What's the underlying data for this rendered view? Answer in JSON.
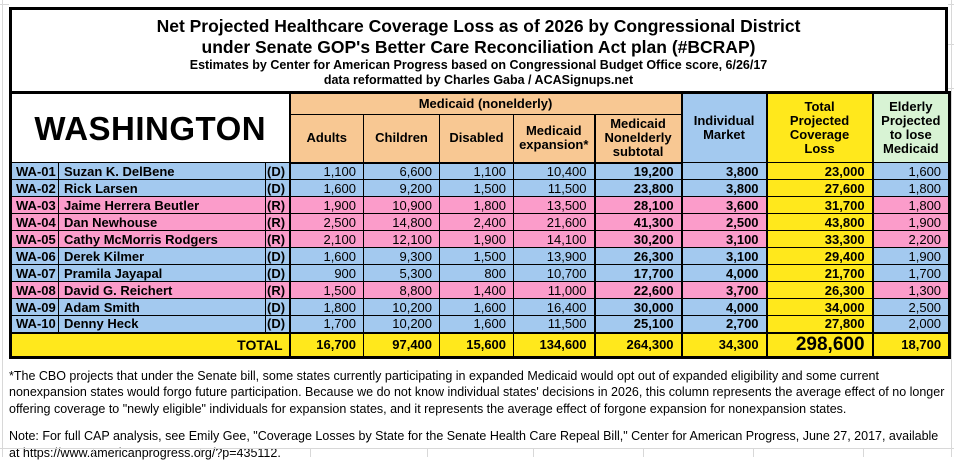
{
  "title": {
    "line1": "Net Projected Healthcare Coverage Loss as of 2026 by Congressional District",
    "line2": "under Senate GOP's Better Care Reconciliation Act plan (#BCRAP)",
    "line3": "Estimates by Center for American Progress based on Congressional Budget Office score, 6/26/17",
    "line4": "data reformatted by Charles Gaba / ACASignups.net"
  },
  "table": {
    "state_label": "WASHINGTON",
    "headers": {
      "medicaid_group": "Medicaid (nonelderly)",
      "adults": "Adults",
      "children": "Children",
      "disabled": "Disabled",
      "expansion": "Medicaid\nexpansion*",
      "subtotal": "Medicaid\nNonelderly\nsubtotal",
      "individual": "Individual\nMarket",
      "total": "Total\nProjected\nCoverage\nLoss",
      "elderly": "Elderly\nProjected\nto lose\nMedicaid"
    },
    "rows": [
      {
        "district": "WA-01",
        "name": "Suzan K. DelBene",
        "party": "(D)",
        "adults": "1,100",
        "children": "6,600",
        "disabled": "1,100",
        "expansion": "10,400",
        "subtotal": "19,200",
        "individual": "3,800",
        "total": "23,000",
        "elderly": "1,600"
      },
      {
        "district": "WA-02",
        "name": "Rick Larsen",
        "party": "(D)",
        "adults": "1,600",
        "children": "9,200",
        "disabled": "1,500",
        "expansion": "11,500",
        "subtotal": "23,800",
        "individual": "3,800",
        "total": "27,600",
        "elderly": "1,800"
      },
      {
        "district": "WA-03",
        "name": "Jaime Herrera Beutler",
        "party": "(R)",
        "adults": "1,900",
        "children": "10,900",
        "disabled": "1,800",
        "expansion": "13,500",
        "subtotal": "28,100",
        "individual": "3,600",
        "total": "31,700",
        "elderly": "1,800"
      },
      {
        "district": "WA-04",
        "name": "Dan Newhouse",
        "party": "(R)",
        "adults": "2,500",
        "children": "14,800",
        "disabled": "2,400",
        "expansion": "21,600",
        "subtotal": "41,300",
        "individual": "2,500",
        "total": "43,800",
        "elderly": "1,900"
      },
      {
        "district": "WA-05",
        "name": "Cathy McMorris Rodgers",
        "party": "(R)",
        "adults": "2,100",
        "children": "12,100",
        "disabled": "1,900",
        "expansion": "14,100",
        "subtotal": "30,200",
        "individual": "3,100",
        "total": "33,300",
        "elderly": "2,200"
      },
      {
        "district": "WA-06",
        "name": "Derek Kilmer",
        "party": "(D)",
        "adults": "1,600",
        "children": "9,300",
        "disabled": "1,500",
        "expansion": "13,900",
        "subtotal": "26,300",
        "individual": "3,100",
        "total": "29,400",
        "elderly": "1,900"
      },
      {
        "district": "WA-07",
        "name": "Pramila Jayapal",
        "party": "(D)",
        "adults": "900",
        "children": "5,300",
        "disabled": "800",
        "expansion": "10,700",
        "subtotal": "17,700",
        "individual": "4,000",
        "total": "21,700",
        "elderly": "1,700"
      },
      {
        "district": "WA-08",
        "name": "David G. Reichert",
        "party": "(R)",
        "adults": "1,500",
        "children": "8,800",
        "disabled": "1,400",
        "expansion": "11,000",
        "subtotal": "22,600",
        "individual": "3,700",
        "total": "26,300",
        "elderly": "1,300"
      },
      {
        "district": "WA-09",
        "name": "Adam Smith",
        "party": "(D)",
        "adults": "1,800",
        "children": "10,200",
        "disabled": "1,600",
        "expansion": "16,400",
        "subtotal": "30,000",
        "individual": "4,000",
        "total": "34,000",
        "elderly": "2,500"
      },
      {
        "district": "WA-10",
        "name": "Denny Heck",
        "party": "(D)",
        "adults": "1,700",
        "children": "10,200",
        "disabled": "1,600",
        "expansion": "11,500",
        "subtotal": "25,100",
        "individual": "2,700",
        "total": "27,800",
        "elderly": "2,000"
      }
    ],
    "total": {
      "label": "TOTAL",
      "adults": "16,700",
      "children": "97,400",
      "disabled": "15,600",
      "expansion": "134,600",
      "subtotal": "264,300",
      "individual": "34,300",
      "total": "298,600",
      "elderly": "18,700"
    }
  },
  "footnote": "*The CBO projects that under the Senate bill, some states currently participating in expanded Medicaid would opt out of expanded eligibility and some current nonexpansion states would forgo future participation. Because we do not know individual states' decisions in 2026, this column represents the average effect of no longer offering coverage to \"newly eligible\" individuals for expansion states, and it represents the average effect of forgone expansion for nonexpansion states.",
  "note": "Note: For full CAP analysis, see Emily Gee, \"Coverage Losses by State for the Senate Health Care Repeal Bill,\" Center for American Progress, June 27, 2017, available at https://www.americanprogress.org/?p=435112.",
  "colors": {
    "democrat_row": "#A3C9EF",
    "republican_row": "#FB9CCA",
    "medicaid_header": "#F8C893",
    "individual_header": "#A3C9EF",
    "total_column": "#FFE81C",
    "elderly_header": "#D8F3D4"
  },
  "chart_data": {
    "type": "table",
    "title": "Net Projected Healthcare Coverage Loss as of 2026 by Congressional District under Senate GOP's Better Care Reconciliation Act plan (#BCRAP)",
    "subtitle": "Estimates by Center for American Progress based on Congressional Budget Office score, 6/26/17; data reformatted by Charles Gaba / ACASignups.net",
    "state": "Washington",
    "columns": [
      "District",
      "Representative",
      "Party",
      "Medicaid Adults",
      "Medicaid Children",
      "Medicaid Disabled",
      "Medicaid expansion",
      "Medicaid Nonelderly subtotal",
      "Individual Market",
      "Total Projected Coverage Loss",
      "Elderly Projected to lose Medicaid"
    ],
    "rows": [
      [
        "WA-01",
        "Suzan K. DelBene",
        "D",
        1100,
        6600,
        1100,
        10400,
        19200,
        3800,
        23000,
        1600
      ],
      [
        "WA-02",
        "Rick Larsen",
        "D",
        1600,
        9200,
        1500,
        11500,
        23800,
        3800,
        27600,
        1800
      ],
      [
        "WA-03",
        "Jaime Herrera Beutler",
        "R",
        1900,
        10900,
        1800,
        13500,
        28100,
        3600,
        31700,
        1800
      ],
      [
        "WA-04",
        "Dan Newhouse",
        "R",
        2500,
        14800,
        2400,
        21600,
        41300,
        2500,
        43800,
        1900
      ],
      [
        "WA-05",
        "Cathy McMorris Rodgers",
        "R",
        2100,
        12100,
        1900,
        14100,
        30200,
        3100,
        33300,
        2200
      ],
      [
        "WA-06",
        "Derek Kilmer",
        "D",
        1600,
        9300,
        1500,
        13900,
        26300,
        3100,
        29400,
        1900
      ],
      [
        "WA-07",
        "Pramila Jayapal",
        "D",
        900,
        5300,
        800,
        10700,
        17700,
        4000,
        21700,
        1700
      ],
      [
        "WA-08",
        "David G. Reichert",
        "R",
        1500,
        8800,
        1400,
        11000,
        22600,
        3700,
        26300,
        1300
      ],
      [
        "WA-09",
        "Adam Smith",
        "D",
        1800,
        10200,
        1600,
        16400,
        30000,
        4000,
        34000,
        2500
      ],
      [
        "WA-10",
        "Denny Heck",
        "D",
        1700,
        10200,
        1600,
        11500,
        25100,
        2700,
        27800,
        2000
      ]
    ],
    "totals": [
      "TOTAL",
      "",
      "",
      16700,
      97400,
      15600,
      134600,
      264300,
      34300,
      298600,
      18700
    ]
  }
}
